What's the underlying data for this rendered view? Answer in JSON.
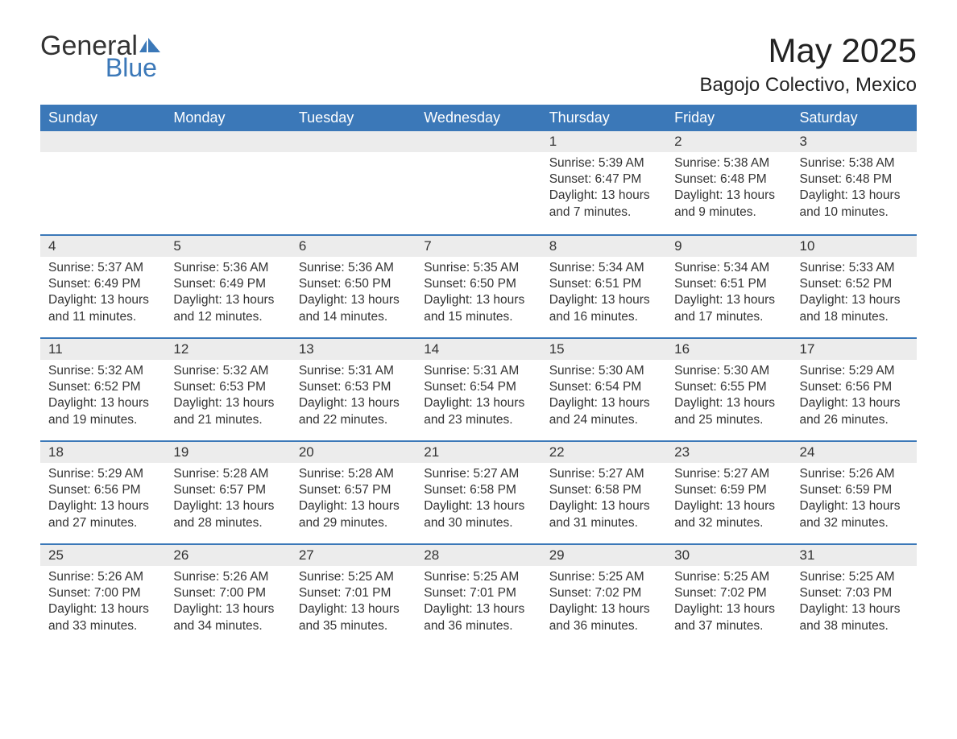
{
  "brand": {
    "word1": "General",
    "word2": "Blue",
    "flag_color": "#3b78b8"
  },
  "title": "May 2025",
  "location": "Bagojo Colectivo, Mexico",
  "colors": {
    "header_bg": "#3b78b8",
    "header_fg": "#ffffff",
    "daynum_bg": "#ececec",
    "row_border": "#3b78b8",
    "text": "#333333",
    "background": "#ffffff"
  },
  "day_names": [
    "Sunday",
    "Monday",
    "Tuesday",
    "Wednesday",
    "Thursday",
    "Friday",
    "Saturday"
  ],
  "weeks": [
    [
      {
        "empty": true
      },
      {
        "empty": true
      },
      {
        "empty": true
      },
      {
        "empty": true
      },
      {
        "num": "1",
        "sunrise": "Sunrise: 5:39 AM",
        "sunset": "Sunset: 6:47 PM",
        "daylight": "Daylight: 13 hours and 7 minutes."
      },
      {
        "num": "2",
        "sunrise": "Sunrise: 5:38 AM",
        "sunset": "Sunset: 6:48 PM",
        "daylight": "Daylight: 13 hours and 9 minutes."
      },
      {
        "num": "3",
        "sunrise": "Sunrise: 5:38 AM",
        "sunset": "Sunset: 6:48 PM",
        "daylight": "Daylight: 13 hours and 10 minutes."
      }
    ],
    [
      {
        "num": "4",
        "sunrise": "Sunrise: 5:37 AM",
        "sunset": "Sunset: 6:49 PM",
        "daylight": "Daylight: 13 hours and 11 minutes."
      },
      {
        "num": "5",
        "sunrise": "Sunrise: 5:36 AM",
        "sunset": "Sunset: 6:49 PM",
        "daylight": "Daylight: 13 hours and 12 minutes."
      },
      {
        "num": "6",
        "sunrise": "Sunrise: 5:36 AM",
        "sunset": "Sunset: 6:50 PM",
        "daylight": "Daylight: 13 hours and 14 minutes."
      },
      {
        "num": "7",
        "sunrise": "Sunrise: 5:35 AM",
        "sunset": "Sunset: 6:50 PM",
        "daylight": "Daylight: 13 hours and 15 minutes."
      },
      {
        "num": "8",
        "sunrise": "Sunrise: 5:34 AM",
        "sunset": "Sunset: 6:51 PM",
        "daylight": "Daylight: 13 hours and 16 minutes."
      },
      {
        "num": "9",
        "sunrise": "Sunrise: 5:34 AM",
        "sunset": "Sunset: 6:51 PM",
        "daylight": "Daylight: 13 hours and 17 minutes."
      },
      {
        "num": "10",
        "sunrise": "Sunrise: 5:33 AM",
        "sunset": "Sunset: 6:52 PM",
        "daylight": "Daylight: 13 hours and 18 minutes."
      }
    ],
    [
      {
        "num": "11",
        "sunrise": "Sunrise: 5:32 AM",
        "sunset": "Sunset: 6:52 PM",
        "daylight": "Daylight: 13 hours and 19 minutes."
      },
      {
        "num": "12",
        "sunrise": "Sunrise: 5:32 AM",
        "sunset": "Sunset: 6:53 PM",
        "daylight": "Daylight: 13 hours and 21 minutes."
      },
      {
        "num": "13",
        "sunrise": "Sunrise: 5:31 AM",
        "sunset": "Sunset: 6:53 PM",
        "daylight": "Daylight: 13 hours and 22 minutes."
      },
      {
        "num": "14",
        "sunrise": "Sunrise: 5:31 AM",
        "sunset": "Sunset: 6:54 PM",
        "daylight": "Daylight: 13 hours and 23 minutes."
      },
      {
        "num": "15",
        "sunrise": "Sunrise: 5:30 AM",
        "sunset": "Sunset: 6:54 PM",
        "daylight": "Daylight: 13 hours and 24 minutes."
      },
      {
        "num": "16",
        "sunrise": "Sunrise: 5:30 AM",
        "sunset": "Sunset: 6:55 PM",
        "daylight": "Daylight: 13 hours and 25 minutes."
      },
      {
        "num": "17",
        "sunrise": "Sunrise: 5:29 AM",
        "sunset": "Sunset: 6:56 PM",
        "daylight": "Daylight: 13 hours and 26 minutes."
      }
    ],
    [
      {
        "num": "18",
        "sunrise": "Sunrise: 5:29 AM",
        "sunset": "Sunset: 6:56 PM",
        "daylight": "Daylight: 13 hours and 27 minutes."
      },
      {
        "num": "19",
        "sunrise": "Sunrise: 5:28 AM",
        "sunset": "Sunset: 6:57 PM",
        "daylight": "Daylight: 13 hours and 28 minutes."
      },
      {
        "num": "20",
        "sunrise": "Sunrise: 5:28 AM",
        "sunset": "Sunset: 6:57 PM",
        "daylight": "Daylight: 13 hours and 29 minutes."
      },
      {
        "num": "21",
        "sunrise": "Sunrise: 5:27 AM",
        "sunset": "Sunset: 6:58 PM",
        "daylight": "Daylight: 13 hours and 30 minutes."
      },
      {
        "num": "22",
        "sunrise": "Sunrise: 5:27 AM",
        "sunset": "Sunset: 6:58 PM",
        "daylight": "Daylight: 13 hours and 31 minutes."
      },
      {
        "num": "23",
        "sunrise": "Sunrise: 5:27 AM",
        "sunset": "Sunset: 6:59 PM",
        "daylight": "Daylight: 13 hours and 32 minutes."
      },
      {
        "num": "24",
        "sunrise": "Sunrise: 5:26 AM",
        "sunset": "Sunset: 6:59 PM",
        "daylight": "Daylight: 13 hours and 32 minutes."
      }
    ],
    [
      {
        "num": "25",
        "sunrise": "Sunrise: 5:26 AM",
        "sunset": "Sunset: 7:00 PM",
        "daylight": "Daylight: 13 hours and 33 minutes."
      },
      {
        "num": "26",
        "sunrise": "Sunrise: 5:26 AM",
        "sunset": "Sunset: 7:00 PM",
        "daylight": "Daylight: 13 hours and 34 minutes."
      },
      {
        "num": "27",
        "sunrise": "Sunrise: 5:25 AM",
        "sunset": "Sunset: 7:01 PM",
        "daylight": "Daylight: 13 hours and 35 minutes."
      },
      {
        "num": "28",
        "sunrise": "Sunrise: 5:25 AM",
        "sunset": "Sunset: 7:01 PM",
        "daylight": "Daylight: 13 hours and 36 minutes."
      },
      {
        "num": "29",
        "sunrise": "Sunrise: 5:25 AM",
        "sunset": "Sunset: 7:02 PM",
        "daylight": "Daylight: 13 hours and 36 minutes."
      },
      {
        "num": "30",
        "sunrise": "Sunrise: 5:25 AM",
        "sunset": "Sunset: 7:02 PM",
        "daylight": "Daylight: 13 hours and 37 minutes."
      },
      {
        "num": "31",
        "sunrise": "Sunrise: 5:25 AM",
        "sunset": "Sunset: 7:03 PM",
        "daylight": "Daylight: 13 hours and 38 minutes."
      }
    ]
  ]
}
